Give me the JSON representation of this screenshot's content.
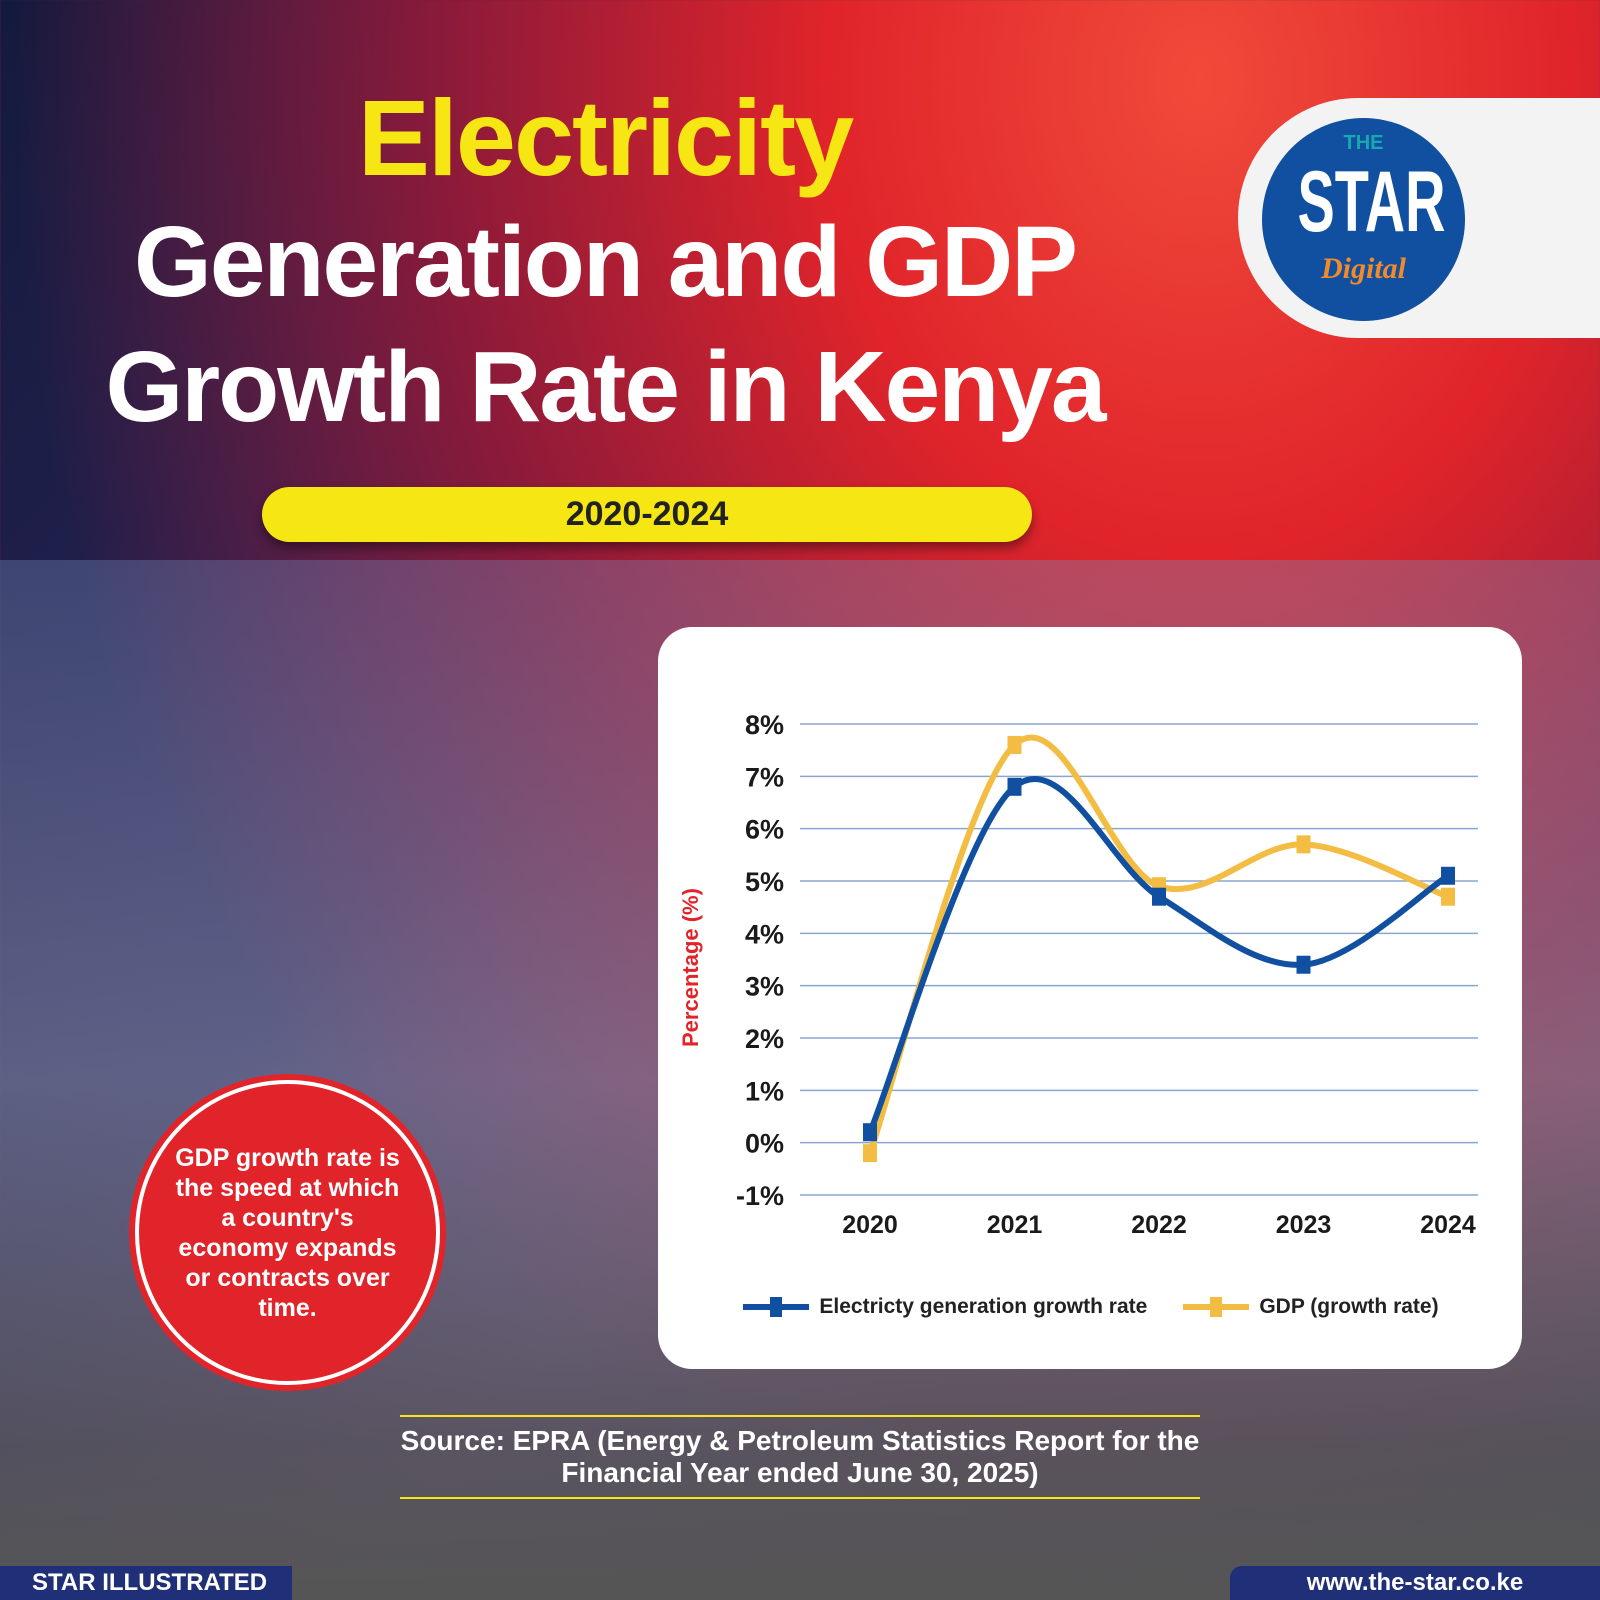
{
  "title": {
    "line1": "Electricity",
    "line2": "Generation and GDP",
    "line3": "Growth Rate in Kenya"
  },
  "period": "2020-2024",
  "logo": {
    "the": "THE",
    "star": "STAR",
    "digital": "Digital"
  },
  "badge_text": "GDP growth rate is the speed at which a country's economy expands or contracts over time.",
  "source": "Source:  EPRA (Energy & Petroleum Statistics Report for the Financial Year ended June 30, 2025)",
  "footer": {
    "left": "STAR ILLUSTRATED",
    "right": "www.the-star.co.ke"
  },
  "chart_data": {
    "type": "line",
    "title": "",
    "xlabel": "",
    "ylabel": "Percentage (%)",
    "categories": [
      "2020",
      "2021",
      "2022",
      "2023",
      "2024"
    ],
    "ylim": [
      -1,
      8
    ],
    "yticks": [
      "-1%",
      "0%",
      "1%",
      "2%",
      "3%",
      "4%",
      "5%",
      "6%",
      "7%",
      "8%"
    ],
    "grid": true,
    "legend": "bottom",
    "series": [
      {
        "name": "Electricty generation growth rate",
        "color": "#1150a0",
        "values": [
          0.2,
          6.8,
          4.7,
          3.4,
          5.1
        ]
      },
      {
        "name": "GDP (growth rate)",
        "color": "#f2bd42",
        "values": [
          -0.2,
          7.6,
          4.9,
          5.7,
          4.7
        ]
      }
    ]
  }
}
